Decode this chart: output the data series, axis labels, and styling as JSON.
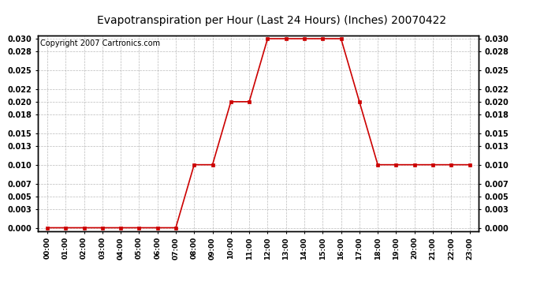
{
  "title": "Evapotranspiration per Hour (Last 24 Hours) (Inches) 20070422",
  "copyright_text": "Copyright 2007 Cartronics.com",
  "x_labels": [
    "00:00",
    "01:00",
    "02:00",
    "03:00",
    "04:00",
    "05:00",
    "06:00",
    "07:00",
    "08:00",
    "09:00",
    "10:00",
    "11:00",
    "12:00",
    "13:00",
    "14:00",
    "15:00",
    "16:00",
    "17:00",
    "18:00",
    "19:00",
    "20:00",
    "21:00",
    "22:00",
    "23:00"
  ],
  "y_values": [
    0.0,
    0.0,
    0.0,
    0.0,
    0.0,
    0.0,
    0.0,
    0.0,
    0.01,
    0.01,
    0.02,
    0.02,
    0.03,
    0.03,
    0.03,
    0.03,
    0.03,
    0.02,
    0.01,
    0.01,
    0.01,
    0.01,
    0.01,
    0.01
  ],
  "line_color": "#cc0000",
  "marker_color": "#cc0000",
  "background_color": "#ffffff",
  "grid_color": "#aaaaaa",
  "title_fontsize": 10,
  "copyright_fontsize": 7,
  "ylim": [
    -0.0005,
    0.0305
  ],
  "yticks": [
    0.0,
    0.003,
    0.005,
    0.007,
    0.01,
    0.013,
    0.015,
    0.018,
    0.02,
    0.022,
    0.025,
    0.028,
    0.03
  ]
}
